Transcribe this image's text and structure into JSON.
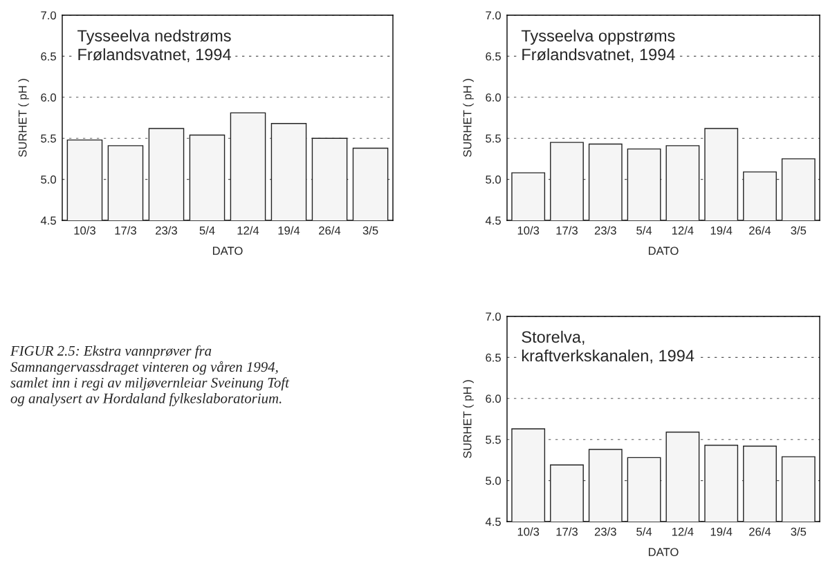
{
  "chart_data": [
    {
      "type": "bar",
      "title": "Tysseelva nedstrøms\nFrølandsvatnet, 1994",
      "xlabel": "DATO",
      "ylabel": "SURHET ( pH )",
      "categories": [
        "10/3",
        "17/3",
        "23/3",
        "5/4",
        "12/4",
        "19/4",
        "26/4",
        "3/5"
      ],
      "series": [
        {
          "color": "#f5f5f5",
          "values": [
            5.48,
            5.41,
            5.62,
            5.54,
            5.81,
            5.68,
            5.5,
            5.38
          ]
        }
      ],
      "ylim": [
        4.5,
        7.0
      ],
      "yticks": [
        {
          "value": 4.5,
          "label": "4.5"
        },
        {
          "value": 5.0,
          "label": "5.0"
        },
        {
          "value": 5.5,
          "label": "5.5"
        },
        {
          "value": 6.0,
          "label": "6.0"
        },
        {
          "value": 6.5,
          "label": "6.5"
        },
        {
          "value": 7.0,
          "label": "7.0"
        }
      ],
      "grid": "y"
    },
    {
      "type": "bar",
      "title": "Tysseelva oppstrøms\nFrølandsvatnet, 1994",
      "xlabel": "DATO",
      "ylabel": "SURHET ( pH )",
      "categories": [
        "10/3",
        "17/3",
        "23/3",
        "5/4",
        "12/4",
        "19/4",
        "26/4",
        "3/5"
      ],
      "series": [
        {
          "color": "#f5f5f5",
          "values": [
            5.08,
            5.45,
            5.43,
            5.37,
            5.41,
            5.62,
            5.09,
            5.25
          ]
        }
      ],
      "ylim": [
        4.5,
        7.0
      ],
      "yticks": [
        {
          "value": 4.5,
          "label": "4.5"
        },
        {
          "value": 5.0,
          "label": "5.0"
        },
        {
          "value": 5.5,
          "label": "5.5"
        },
        {
          "value": 6.0,
          "label": "6.0"
        },
        {
          "value": 6.5,
          "label": "6.5"
        },
        {
          "value": 7.0,
          "label": "7.0"
        }
      ],
      "grid": "y"
    },
    {
      "type": "bar",
      "title": "Storelva,\nkraftverkskanalen, 1994",
      "xlabel": "DATO",
      "ylabel": "SURHET ( pH )",
      "categories": [
        "10/3",
        "17/3",
        "23/3",
        "5/4",
        "12/4",
        "19/4",
        "26/4",
        "3/5"
      ],
      "series": [
        {
          "color": "#f5f5f5",
          "values": [
            5.63,
            5.19,
            5.38,
            5.28,
            5.59,
            5.43,
            5.42,
            5.29
          ]
        }
      ],
      "ylim": [
        4.5,
        7.0
      ],
      "yticks": [
        {
          "value": 4.5,
          "label": "4.5"
        },
        {
          "value": 5.0,
          "label": "5.0"
        },
        {
          "value": 5.5,
          "label": "5.5"
        },
        {
          "value": 6.0,
          "label": "6.0"
        },
        {
          "value": 6.5,
          "label": "6.5"
        },
        {
          "value": 7.0,
          "label": "7.0"
        }
      ],
      "grid": "y",
      "annotations": [
        "FIGUR 2.5: Ekstra vannprøver fra\nSamnangervassdraget vinteren og våren 1994,\nsamlet inn i regi av miljøvernleiar Sveinung Toft\nog analysert av Hordaland fylkeslaboratorium."
      ]
    }
  ]
}
